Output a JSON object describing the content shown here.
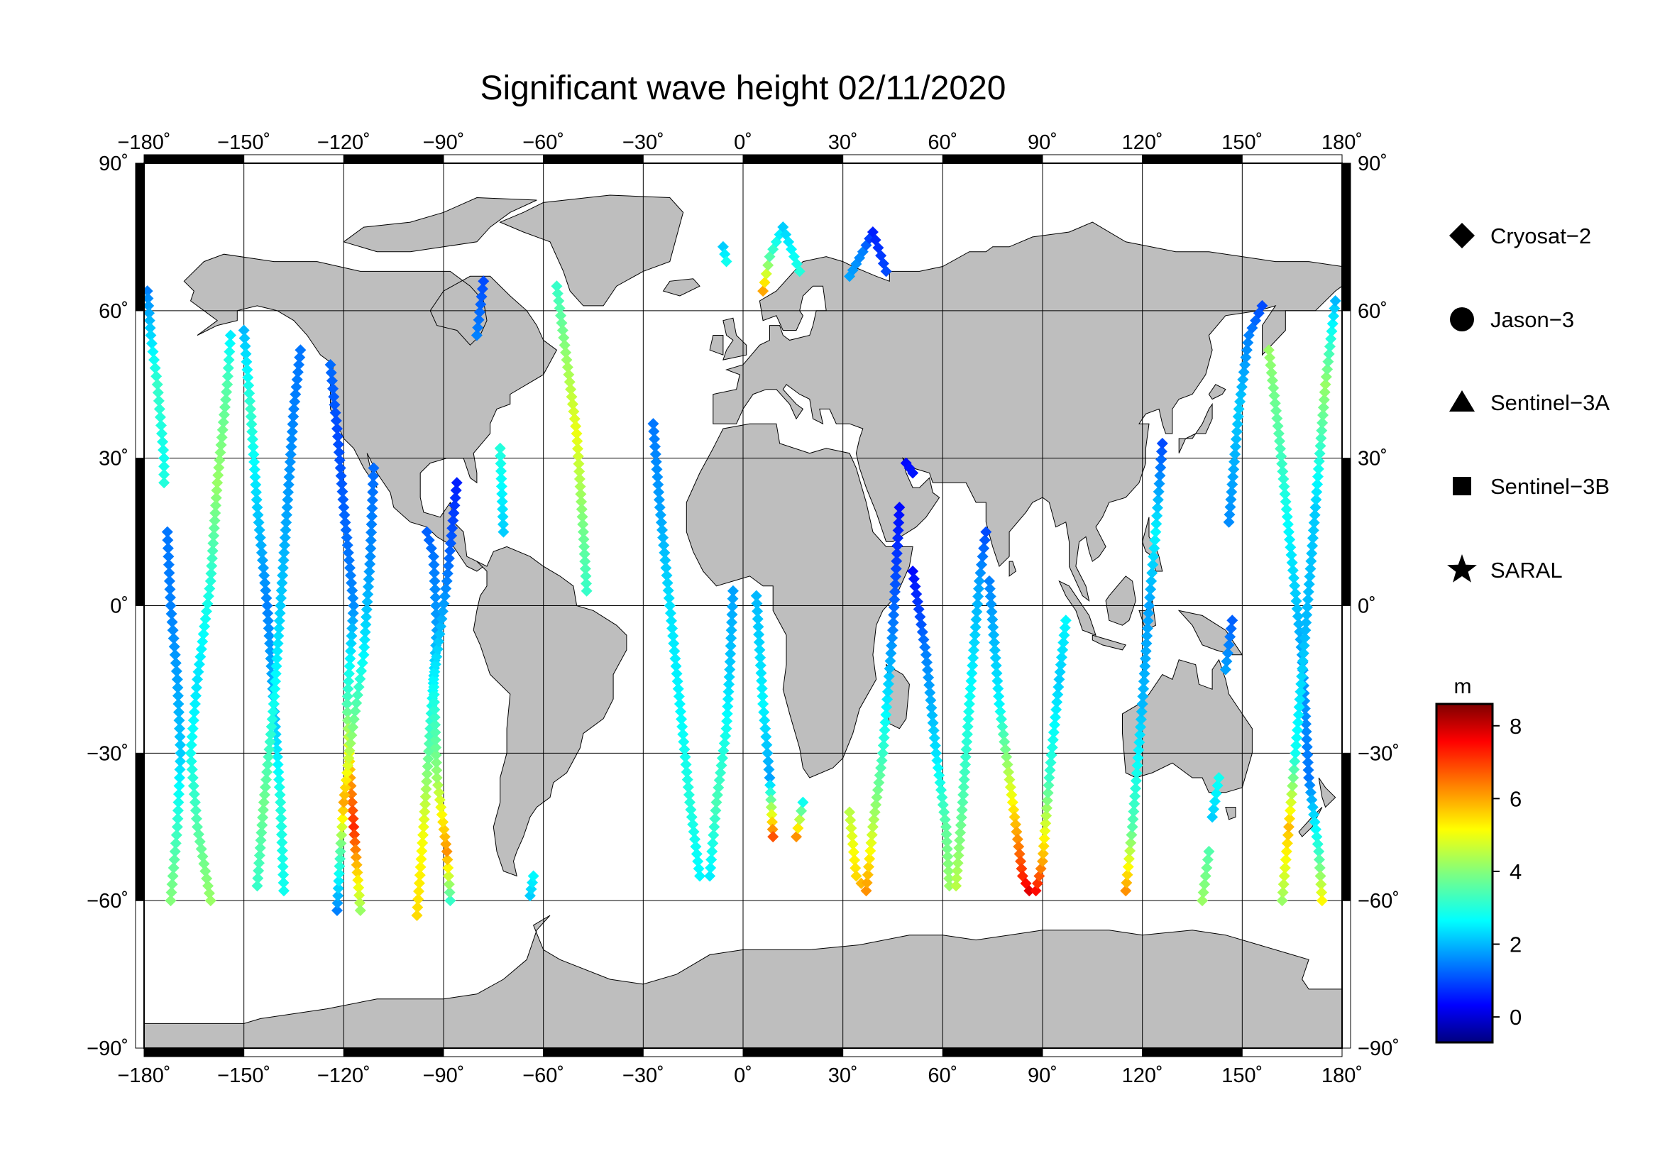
{
  "title": "Significant wave height 02/11/2020",
  "map": {
    "lon_range": [
      -180,
      180
    ],
    "lat_range": [
      -90,
      90
    ],
    "lon_ticks": [
      -180,
      -150,
      -120,
      -90,
      -60,
      -30,
      0,
      30,
      60,
      90,
      120,
      150,
      180
    ],
    "lat_ticks": [
      -90,
      -60,
      -30,
      0,
      30,
      60,
      90
    ],
    "lon_labels": [
      "−180˚",
      "−150˚",
      "−120˚",
      "−90˚",
      "−60˚",
      "−30˚",
      "0˚",
      "30˚",
      "60˚",
      "90˚",
      "120˚",
      "150˚",
      "180˚"
    ],
    "lat_labels_left": [
      "−90˚",
      "−60˚",
      "−30˚",
      "0˚",
      "30˚",
      "60˚",
      "90˚"
    ],
    "lat_labels_right": [
      "−90˚",
      "−60˚",
      "−30˚",
      "0˚",
      "30˚",
      "60˚",
      "90˚"
    ],
    "land_color": "#bebebe",
    "ocean_color": "#ffffff",
    "grid": true
  },
  "legend": {
    "items": [
      {
        "label": "Cryosat−2",
        "symbol": "diamond"
      },
      {
        "label": "Jason−3",
        "symbol": "circle"
      },
      {
        "label": "Sentinel−3A",
        "symbol": "triangle"
      },
      {
        "label": "Sentinel−3B",
        "symbol": "square"
      },
      {
        "label": "SARAL",
        "symbol": "star"
      }
    ]
  },
  "colorbar": {
    "unit": "m",
    "min": -0.7,
    "max": 8.6,
    "ticks": [
      0,
      2,
      4,
      6,
      8
    ],
    "tick_labels": [
      "0",
      "2",
      "4",
      "6",
      "8"
    ],
    "colormap": "jet"
  },
  "chart_data": {
    "type": "scatter",
    "title": "Significant wave height 02/11/2020",
    "xlabel": "",
    "ylabel": "",
    "xlim": [
      -180,
      180
    ],
    "ylim": [
      -90,
      90
    ],
    "value_unit": "m",
    "tracks": [
      {
        "symbol": "diamond",
        "points": [
          [
            -179,
            64,
            1.5
          ],
          [
            -178,
            55,
            2.3
          ],
          [
            -176,
            45,
            3.2
          ],
          [
            -174,
            30,
            2.8
          ],
          [
            -174,
            25,
            3.0
          ]
        ]
      },
      {
        "symbol": "diamond",
        "points": [
          [
            -172,
            -60,
            4.0
          ],
          [
            -170,
            -45,
            3.2
          ],
          [
            -169,
            -30,
            2.2
          ],
          [
            -170,
            -15,
            1.8
          ],
          [
            -172,
            0,
            1.5
          ],
          [
            -173,
            15,
            1.4
          ]
        ]
      },
      {
        "symbol": "diamond",
        "points": [
          [
            -160,
            -60,
            4.2
          ],
          [
            -164,
            -45,
            3.5
          ],
          [
            -166,
            -30,
            2.8
          ],
          [
            -164,
            -15,
            2.4
          ],
          [
            -160,
            5,
            3.0
          ],
          [
            -158,
            25,
            4.2
          ],
          [
            -155,
            45,
            3.5
          ],
          [
            -154,
            55,
            2.5
          ]
        ]
      },
      {
        "symbol": "diamond",
        "points": [
          [
            -150,
            56,
            2.0
          ],
          [
            -148,
            40,
            3.2
          ],
          [
            -146,
            20,
            2.2
          ],
          [
            -143,
            0,
            1.5
          ],
          [
            -141,
            -20,
            2.0
          ],
          [
            -139,
            -40,
            3.0
          ],
          [
            -138,
            -58,
            2.8
          ]
        ]
      },
      {
        "symbol": "diamond",
        "points": [
          [
            -146,
            -57,
            3.2
          ],
          [
            -144,
            -40,
            3.8
          ],
          [
            -141,
            -20,
            2.8
          ],
          [
            -139,
            0,
            2.2
          ],
          [
            -137,
            20,
            1.8
          ],
          [
            -135,
            40,
            1.5
          ],
          [
            -133,
            52,
            1.4
          ]
        ]
      },
      {
        "symbol": "diamond",
        "points": [
          [
            -124,
            49,
            1.3
          ],
          [
            -122,
            36,
            1.0
          ],
          [
            -120,
            20,
            1.2
          ],
          [
            -117,
            0,
            1.6
          ],
          [
            -119,
            -20,
            3.4
          ],
          [
            -118,
            -35,
            6.0
          ],
          [
            -117,
            -45,
            7.2
          ],
          [
            -115,
            -62,
            4.2
          ]
        ]
      },
      {
        "symbol": "diamond",
        "points": [
          [
            -122,
            -62,
            1.5
          ],
          [
            -121,
            -50,
            3.5
          ],
          [
            -120,
            -40,
            6.0
          ],
          [
            -118,
            -28,
            4.2
          ],
          [
            -114,
            -10,
            2.6
          ],
          [
            -112,
            10,
            1.6
          ],
          [
            -111,
            28,
            1.3
          ]
        ]
      },
      {
        "symbol": "diamond",
        "points": [
          [
            -98,
            -63,
            5.5
          ],
          [
            -96,
            -45,
            5.0
          ],
          [
            -94,
            -25,
            3.2
          ],
          [
            -92,
            -5,
            1.8
          ],
          [
            -93,
            10,
            1.4
          ],
          [
            -95,
            15,
            1.2
          ]
        ]
      },
      {
        "symbol": "diamond",
        "points": [
          [
            -88,
            -60,
            3.2
          ],
          [
            -89,
            -50,
            6.2
          ],
          [
            -92,
            -35,
            4.2
          ],
          [
            -93,
            -15,
            2.6
          ],
          [
            -89,
            5,
            1.5
          ],
          [
            -86,
            25,
            0.6
          ]
        ]
      },
      {
        "symbol": "diamond",
        "points": [
          [
            -80,
            55,
            1.5
          ],
          [
            -78,
            66,
            1.0
          ]
        ]
      },
      {
        "symbol": "diamond",
        "points": [
          [
            -73,
            32,
            3.0
          ],
          [
            -72,
            15,
            2.2
          ]
        ]
      },
      {
        "symbol": "diamond",
        "points": [
          [
            -56,
            65,
            3.2
          ],
          [
            -53,
            50,
            4.2
          ],
          [
            -50,
            35,
            5.0
          ],
          [
            -48,
            15,
            3.8
          ],
          [
            -47,
            3,
            3.2
          ]
        ]
      },
      {
        "symbol": "diamond",
        "points": [
          [
            -64,
            -59,
            2.2
          ],
          [
            -63,
            -55,
            2.6
          ]
        ]
      },
      {
        "symbol": "diamond",
        "points": [
          [
            -27,
            37,
            1.4
          ],
          [
            -25,
            20,
            1.8
          ],
          [
            -22,
            0,
            2.4
          ],
          [
            -19,
            -20,
            2.6
          ],
          [
            -16,
            -40,
            3.0
          ],
          [
            -13,
            -55,
            2.6
          ]
        ]
      },
      {
        "symbol": "diamond",
        "points": [
          [
            -10,
            -55,
            2.5
          ],
          [
            -8,
            -40,
            3.4
          ],
          [
            -5,
            -25,
            2.8
          ],
          [
            -4,
            -13,
            2.2
          ],
          [
            -3,
            3,
            1.8
          ]
        ]
      },
      {
        "symbol": "diamond",
        "points": [
          [
            -6,
            73,
            2.2
          ],
          [
            -5,
            70,
            2.8
          ]
        ]
      },
      {
        "symbol": "diamond",
        "points": [
          [
            4,
            2,
            2.0
          ],
          [
            6,
            -20,
            2.6
          ],
          [
            8,
            -35,
            1.8
          ],
          [
            9,
            -47,
            6.8
          ]
        ]
      },
      {
        "symbol": "diamond",
        "points": [
          [
            6,
            64,
            6.0
          ],
          [
            8,
            71,
            3.5
          ],
          [
            12,
            77,
            2.2
          ],
          [
            17,
            68,
            3.0
          ]
        ]
      },
      {
        "symbol": "diamond",
        "points": [
          [
            16,
            -47,
            6.2
          ],
          [
            18,
            -40,
            2.8
          ]
        ]
      },
      {
        "symbol": "diamond",
        "points": [
          [
            32,
            -42,
            4.5
          ],
          [
            34,
            -55,
            5.5
          ],
          [
            37,
            -58,
            6.2
          ],
          [
            39,
            -45,
            4.5
          ],
          [
            42,
            -30,
            3.2
          ],
          [
            45,
            -5,
            1.5
          ],
          [
            47,
            20,
            0.4
          ]
        ]
      },
      {
        "symbol": "diamond",
        "points": [
          [
            32,
            67,
            1.8
          ],
          [
            36,
            72,
            1.5
          ],
          [
            39,
            76,
            0.6
          ],
          [
            43,
            68,
            1.0
          ]
        ]
      },
      {
        "symbol": "diamond",
        "points": [
          [
            49,
            29,
            0.4
          ],
          [
            51,
            27,
            0.5
          ]
        ]
      },
      {
        "symbol": "diamond",
        "points": [
          [
            51,
            7,
            0.4
          ],
          [
            55,
            -10,
            1.5
          ],
          [
            58,
            -30,
            2.4
          ],
          [
            61,
            -45,
            3.6
          ],
          [
            62,
            -57,
            4.2
          ]
        ]
      },
      {
        "symbol": "diamond",
        "points": [
          [
            64,
            -57,
            4.5
          ],
          [
            66,
            -40,
            3.5
          ],
          [
            68,
            -20,
            2.8
          ],
          [
            71,
            5,
            1.8
          ],
          [
            73,
            15,
            1.0
          ]
        ]
      },
      {
        "symbol": "diamond",
        "points": [
          [
            74,
            5,
            1.5
          ],
          [
            77,
            -20,
            2.6
          ],
          [
            81,
            -40,
            5.2
          ],
          [
            84,
            -55,
            7.2
          ],
          [
            86,
            -58,
            7.8
          ]
        ]
      },
      {
        "symbol": "diamond",
        "points": [
          [
            88,
            -58,
            7.5
          ],
          [
            90,
            -52,
            6.0
          ],
          [
            92,
            -35,
            3.2
          ],
          [
            95,
            -15,
            2.2
          ],
          [
            97,
            -3,
            2.6
          ]
        ]
      },
      {
        "symbol": "diamond",
        "points": [
          [
            115,
            -58,
            6.2
          ],
          [
            117,
            -45,
            3.5
          ],
          [
            120,
            -20,
            2.0
          ],
          [
            122,
            0,
            1.8
          ],
          [
            124,
            15,
            2.6
          ],
          [
            126,
            33,
            1.0
          ]
        ]
      },
      {
        "symbol": "diamond",
        "points": [
          [
            138,
            -60,
            4.2
          ],
          [
            140,
            -50,
            3.5
          ]
        ]
      },
      {
        "symbol": "diamond",
        "points": [
          [
            141,
            -43,
            2.2
          ],
          [
            143,
            -35,
            2.8
          ]
        ]
      },
      {
        "symbol": "diamond",
        "points": [
          [
            145,
            -13,
            1.8
          ],
          [
            147,
            -3,
            1.2
          ]
        ]
      },
      {
        "symbol": "diamond",
        "points": [
          [
            146,
            17,
            1.6
          ],
          [
            149,
            40,
            2.2
          ],
          [
            152,
            55,
            1.5
          ],
          [
            156,
            61,
            1.0
          ]
        ]
      },
      {
        "symbol": "diamond",
        "points": [
          [
            158,
            52,
            4.2
          ],
          [
            161,
            35,
            3.5
          ],
          [
            164,
            15,
            2.6
          ],
          [
            168,
            -10,
            1.8
          ],
          [
            170,
            -35,
            1.4
          ],
          [
            173,
            -50,
            3.2
          ],
          [
            174,
            -60,
            5.2
          ]
        ]
      },
      {
        "symbol": "diamond",
        "points": [
          [
            162,
            -60,
            4.2
          ],
          [
            164,
            -45,
            5.8
          ],
          [
            166,
            -30,
            2.8
          ],
          [
            169,
            -5,
            2.0
          ],
          [
            172,
            20,
            2.2
          ],
          [
            175,
            45,
            4.2
          ],
          [
            178,
            62,
            2.0
          ]
        ]
      }
    ]
  }
}
